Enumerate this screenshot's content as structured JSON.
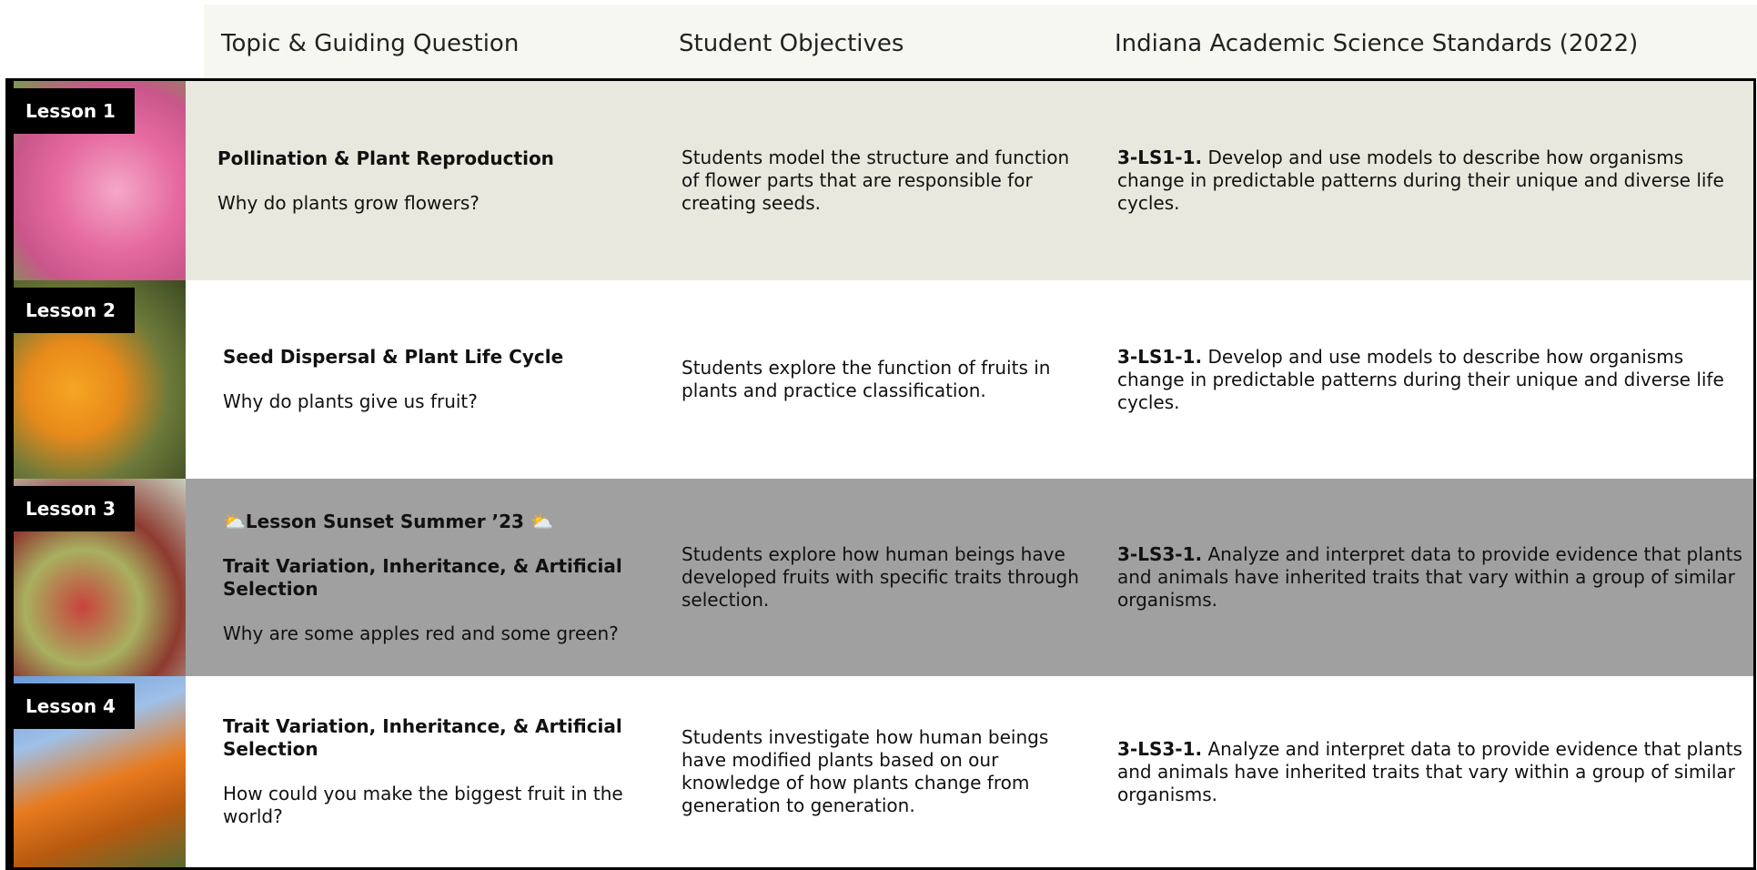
{
  "header": {
    "columns": [
      "Topic & Guiding Question",
      "Student Objectives",
      "Indiana Academic Science Standards (2022)"
    ]
  },
  "rows": [
    {
      "label": "Lesson 1",
      "topic": "Pollination & Plant Reproduction",
      "question": "Why do plants grow flowers?",
      "objective": "Students model the structure and function of flower parts that are responsible for creating seeds.",
      "standard_code": "3-LS1-1.",
      "standard_text": "Develop and use models to describe how organisms change in predictable patterns during their unique and diverse life cycles."
    },
    {
      "label": "Lesson 2",
      "topic": "Seed Dispersal & Plant Life Cycle",
      "question": "Why do plants give us fruit?",
      "objective": "Students explore the function of fruits in plants and practice classification.",
      "standard_code": "3-LS1-1.",
      "standard_text": "Develop and use models to describe how organisms change in predictable patterns during their unique and diverse life cycles."
    },
    {
      "label": "Lesson 3",
      "banner": "⛅Lesson Sunset Summer ’23 ⛅",
      "topic": "Trait Variation, Inheritance, & Artificial Selection",
      "question": "Why are some apples red and some green?",
      "objective": "Students explore how human beings have developed fruits with specific traits through selection.",
      "standard_code": "3-LS3-1.",
      "standard_text": "Analyze and interpret data to provide evidence that plants and animals have inherited traits that vary within a group of similar organisms."
    },
    {
      "label": "Lesson 4",
      "topic": "Trait Variation, Inheritance, & Artificial Selection",
      "question": "How could you make the biggest fruit in the world?",
      "objective": "Students investigate how human beings have modified plants based on our knowledge of how plants change from generation to generation.",
      "standard_code": "3-LS3-1.",
      "standard_text": "Analyze and interpret data to provide evidence that plants and animals have inherited traits that vary within a group of similar organisms."
    }
  ]
}
